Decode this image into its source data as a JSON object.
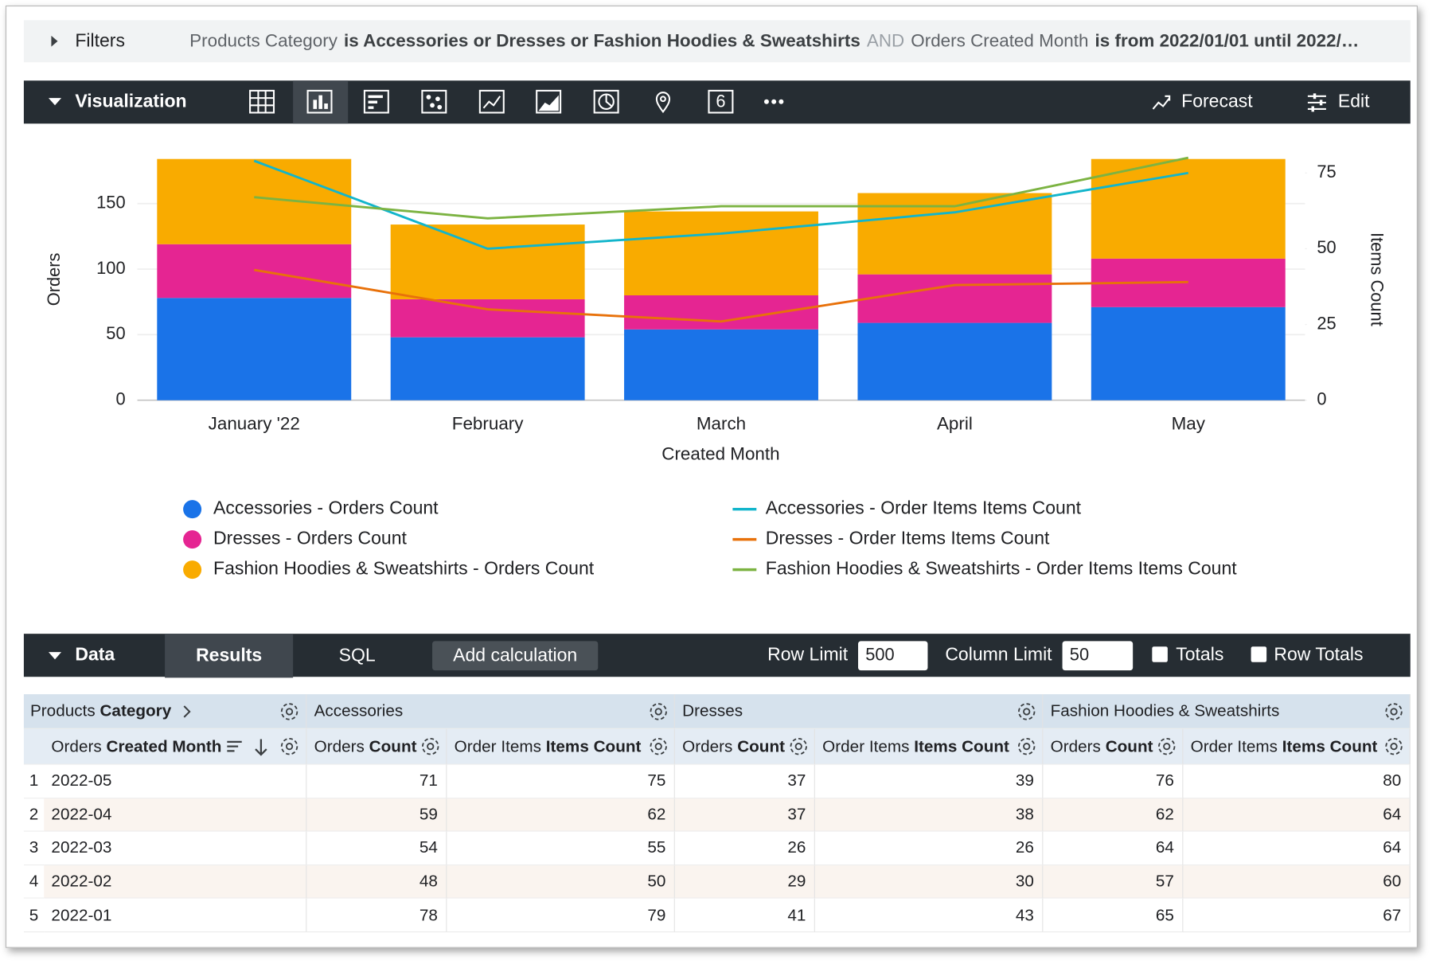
{
  "filters": {
    "toggle_label": "Filters",
    "parts": [
      {
        "text": "Products Category",
        "role": "field"
      },
      {
        "text": "is Accessories or Dresses or Fashion Hoodies & Sweatshirts",
        "role": "value"
      },
      {
        "text": "AND",
        "role": "joiner"
      },
      {
        "text": "Orders Created Month",
        "role": "field"
      },
      {
        "text": "is from 2022/01/01 until 2022/…",
        "role": "value"
      }
    ]
  },
  "visualization": {
    "label": "Visualization",
    "single_value_icon": "6",
    "forecast": "Forecast",
    "edit": "Edit"
  },
  "chart_data": {
    "type": "bar",
    "stacked": true,
    "categories": [
      "January '22",
      "February",
      "March",
      "April",
      "May"
    ],
    "x_label": "Created Month",
    "y_label": "Orders",
    "y2_label": "Items Count",
    "series": [
      {
        "name": "Accessories - Orders Count",
        "type": "bar",
        "color": "#1a73e8",
        "values": [
          78,
          48,
          54,
          59,
          71
        ]
      },
      {
        "name": "Dresses - Orders Count",
        "type": "bar",
        "color": "#e52592",
        "values": [
          41,
          29,
          26,
          37,
          37
        ]
      },
      {
        "name": "Fashion Hoodies & Sweatshirts - Orders Count",
        "type": "bar",
        "color": "#f9ab00",
        "values": [
          65,
          57,
          64,
          62,
          76
        ]
      },
      {
        "name": "Accessories - Order Items Items Count",
        "type": "line",
        "axis": "y2",
        "color": "#12b5cb",
        "values": [
          79,
          50,
          55,
          62,
          75
        ]
      },
      {
        "name": "Dresses - Order Items Items Count",
        "type": "line",
        "axis": "y2",
        "color": "#e8710a",
        "values": [
          43,
          30,
          26,
          38,
          39
        ]
      },
      {
        "name": "Fashion Hoodies & Sweatshirts - Order Items Items Count",
        "type": "line",
        "axis": "y2",
        "color": "#7cb342",
        "values": [
          67,
          60,
          64,
          64,
          80
        ]
      }
    ],
    "ylim": [
      0,
      190
    ],
    "yticks": [
      0,
      50,
      100,
      150
    ],
    "y2lim": [
      0,
      82.2
    ],
    "y2ticks": [
      0,
      25,
      50,
      75
    ],
    "grid": true
  },
  "data_panel": {
    "label": "Data",
    "tabs": [
      "Results",
      "SQL"
    ],
    "active_tab": 0,
    "add_calculation": "Add calculation",
    "row_limit_label": "Row Limit",
    "row_limit": 500,
    "column_limit_label": "Column Limit",
    "column_limit": 50,
    "totals": "Totals",
    "totals_checked": false,
    "row_totals": "Row Totals",
    "row_totals_checked": false
  },
  "table": {
    "pivot_label": {
      "view": "Products",
      "field": "Category"
    },
    "pivots": [
      "Accessories",
      "Dresses",
      "Fashion Hoodies & Sweatshirts"
    ],
    "dimension": {
      "view": "Orders",
      "field": "Created Month"
    },
    "measures": [
      {
        "view": "Orders",
        "field": "Count"
      },
      {
        "view": "Order Items",
        "field": "Items Count"
      }
    ],
    "rows": [
      [
        1,
        "2022-05",
        71,
        75,
        37,
        39,
        76,
        80
      ],
      [
        2,
        "2022-04",
        59,
        62,
        37,
        38,
        62,
        64
      ],
      [
        3,
        "2022-03",
        54,
        55,
        26,
        26,
        64,
        64
      ],
      [
        4,
        "2022-02",
        48,
        50,
        29,
        30,
        57,
        60
      ],
      [
        5,
        "2022-01",
        78,
        79,
        41,
        43,
        65,
        67
      ]
    ]
  }
}
